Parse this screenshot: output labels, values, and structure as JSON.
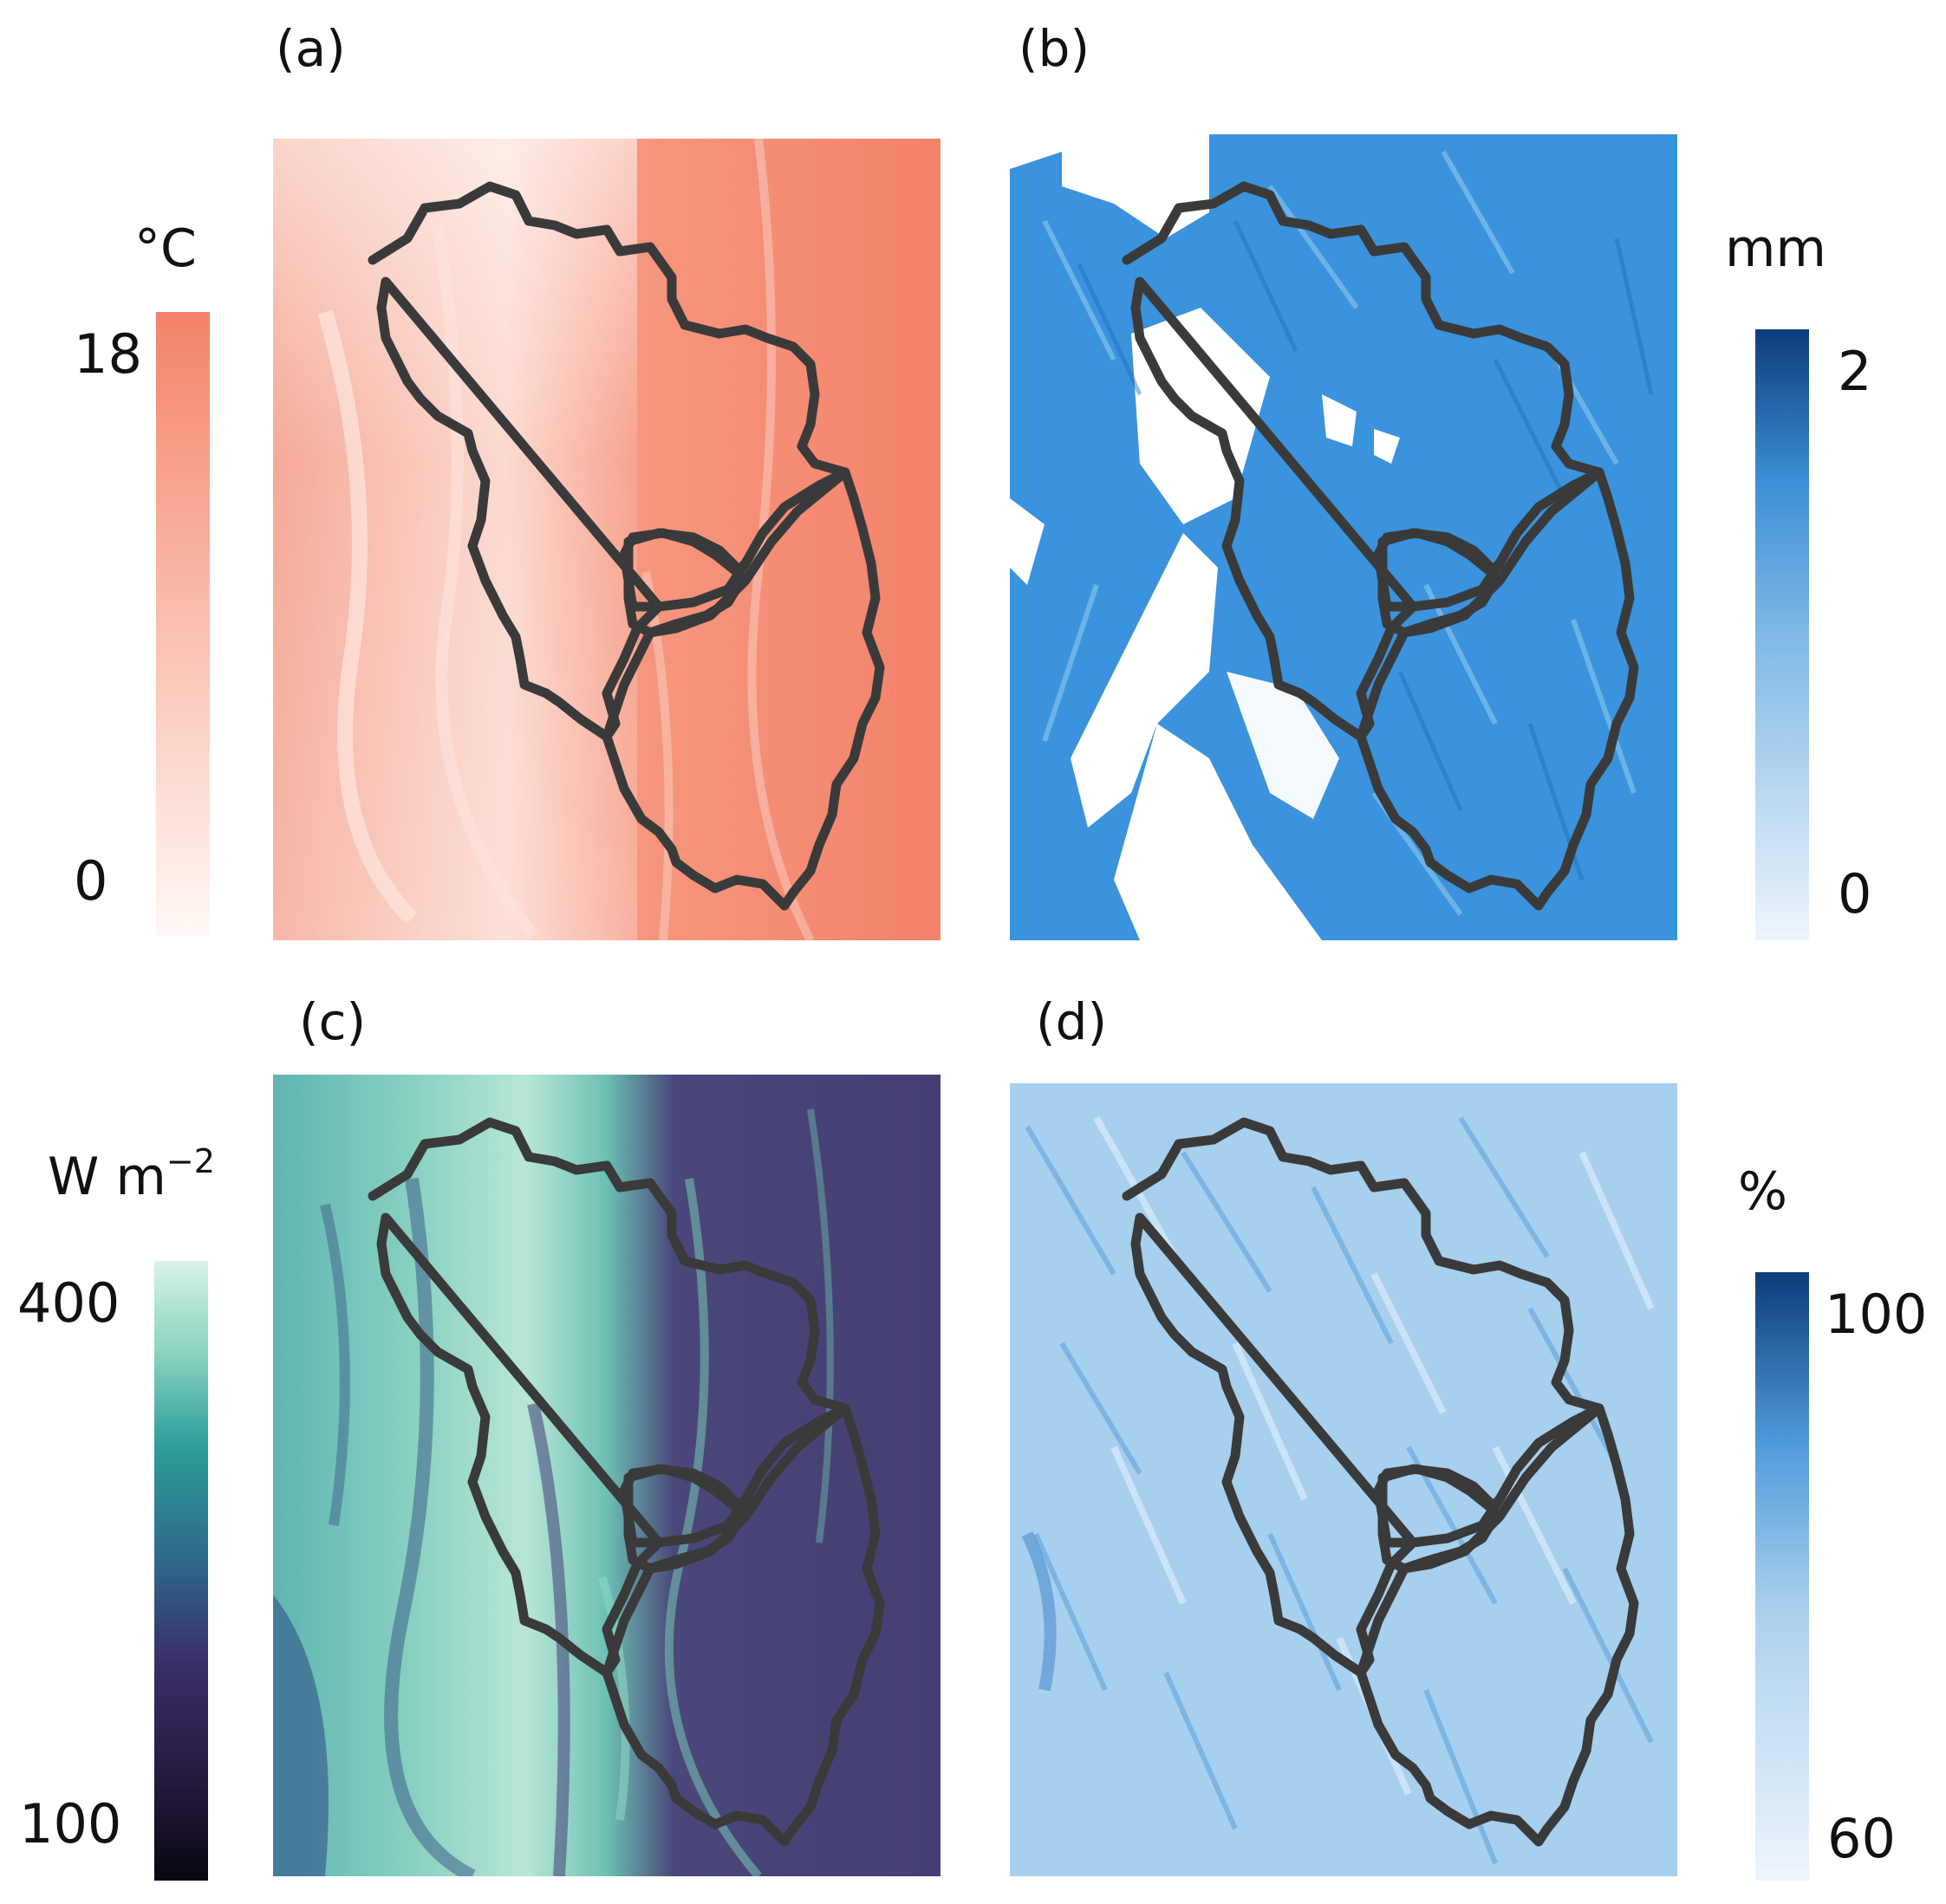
{
  "panels": [
    {
      "label": "(a)",
      "unit": "°C",
      "tick_max": "18",
      "tick_min": "0",
      "colors": {
        "low": "#fff8f5",
        "high": "#f4826a"
      }
    },
    {
      "label": "(b)",
      "unit": "mm",
      "tick_max": "2",
      "tick_min": "0",
      "colors": {
        "low": "#eef5fc",
        "mid": "#3d97dd",
        "high": "#0d3c7a"
      }
    },
    {
      "label": "(c)",
      "unit_base": "W m",
      "unit_exp": "−2",
      "tick_max": "400",
      "tick_min": "100",
      "colors": {
        "low": "#0b0712",
        "mid1": "#3a2e68",
        "mid2": "#2b9e9a",
        "high": "#d8f2e6"
      }
    },
    {
      "label": "(d)",
      "unit": "%",
      "tick_max": "100",
      "tick_min": "60",
      "colors": {
        "low": "#eef5fc",
        "high": "#0d3c7a"
      }
    }
  ],
  "outline_color": "#3a3a3a"
}
